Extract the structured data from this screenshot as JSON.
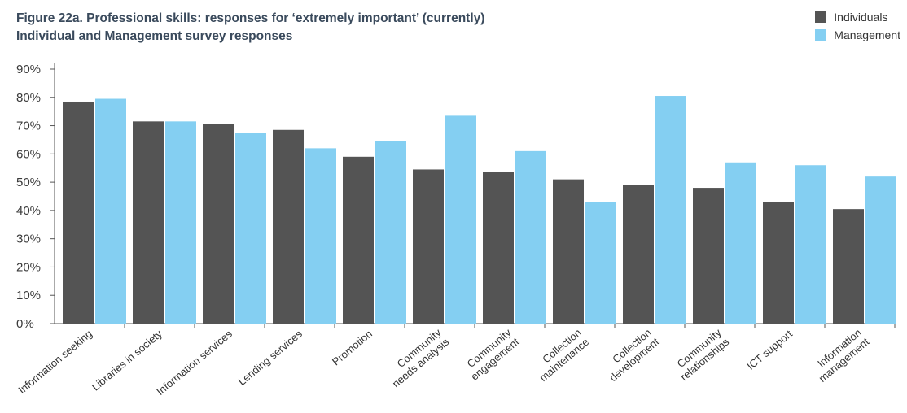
{
  "chart_data": {
    "type": "bar",
    "title_line1": "Figure 22a. Professional skills: responses for ‘extremely important’ (currently)",
    "title_line2": "Individual and Management survey responses",
    "ylim": [
      0,
      90
    ],
    "yticks": [
      "0%",
      "10%",
      "20%",
      "30%",
      "40%",
      "50%",
      "60%",
      "70%",
      "80%",
      "90%"
    ],
    "categories": [
      [
        "Information seeking"
      ],
      [
        "Libraries in society"
      ],
      [
        "Information services"
      ],
      [
        "Lending services"
      ],
      [
        "Promotion"
      ],
      [
        "Community",
        "needs analysis"
      ],
      [
        "Community",
        "engagement"
      ],
      [
        "Collection",
        "maintenance"
      ],
      [
        "Collection",
        "development"
      ],
      [
        "Community",
        "relationships"
      ],
      [
        "ICT support"
      ],
      [
        "Information",
        "management"
      ]
    ],
    "series": [
      {
        "name": "Individuals",
        "color": "#545454",
        "values": [
          78.5,
          71.5,
          70.5,
          68.5,
          59,
          54.5,
          53.5,
          51,
          49,
          48,
          43,
          40.5
        ]
      },
      {
        "name": "Management",
        "color": "#84cff2",
        "values": [
          79.5,
          71.5,
          67.5,
          62,
          64.5,
          73.5,
          61,
          43,
          80.5,
          57,
          56,
          52
        ]
      }
    ],
    "legend_position": "top-right",
    "grid": false
  }
}
